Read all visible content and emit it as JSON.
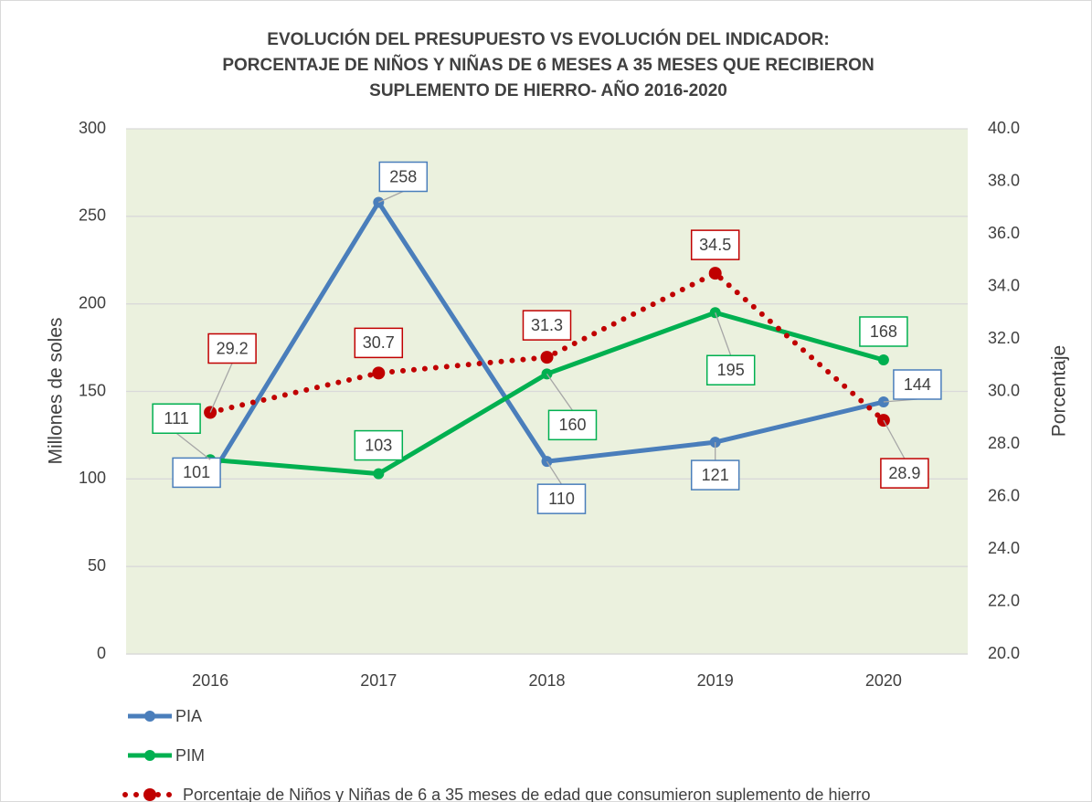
{
  "chart_data": {
    "type": "line",
    "title": [
      "EVOLUCIÓN DEL PRESUPUESTO VS EVOLUCIÓN DEL INDICADOR:",
      "PORCENTAJE DE NIÑOS Y NIÑAS DE 6 MESES A 35 MESES QUE RECIBIERON",
      "SUPLEMENTO DE HIERRO- AÑO 2016-2020"
    ],
    "y_label": "Millones de soles",
    "y2_label": "Porcentaje",
    "categories": [
      "2016",
      "2017",
      "2018",
      "2019",
      "2020"
    ],
    "series": [
      {
        "name": "PIA",
        "color": "#4a7ebb",
        "values": [
          101,
          258,
          110,
          121,
          144
        ]
      },
      {
        "name": "PIM",
        "color": "#00b050",
        "values": [
          111,
          103,
          160,
          195,
          168
        ]
      },
      {
        "name": "Porcentaje de Niños y Niñas de 6 a 35 meses de edad que consumieron suplemento de hierro",
        "color": "#c00000",
        "axis": "y2",
        "dotted": true,
        "values": [
          29.2,
          30.7,
          31.3,
          34.5,
          28.9
        ]
      }
    ],
    "ylim": [
      0,
      300
    ],
    "yticks": [
      0,
      50,
      100,
      150,
      200,
      250,
      300
    ],
    "y2lim": [
      20,
      40
    ],
    "y2ticks": [
      {
        "value": 20,
        "label": "20.0"
      },
      {
        "value": 22,
        "label": "22.0"
      },
      {
        "value": 24,
        "label": "24.0"
      },
      {
        "value": 26,
        "label": "26.0"
      },
      {
        "value": 28,
        "label": "28.0"
      },
      {
        "value": 30,
        "label": "30.0"
      },
      {
        "value": 32,
        "label": "32.0"
      },
      {
        "value": 34,
        "label": "34.0"
      },
      {
        "value": 36,
        "label": "36.0"
      },
      {
        "value": 38,
        "label": "38.0"
      },
      {
        "value": 40,
        "label": "40.0"
      }
    ],
    "grid": true,
    "legend": "bottom",
    "plot_background": "#ebf1de"
  }
}
